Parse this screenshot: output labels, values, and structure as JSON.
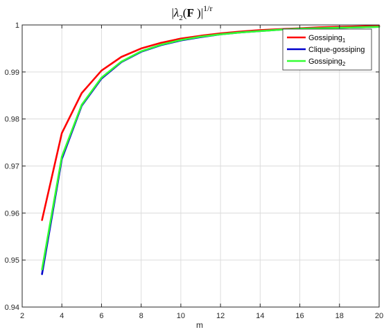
{
  "chart_data": {
    "type": "line",
    "title": {
      "bar_open": "|",
      "symbol": "λ",
      "subscript": "2",
      "paren_open": "(",
      "matrix": "F",
      "paren_close": " )",
      "bar_close": "|",
      "exponent": "1/r"
    },
    "xlabel": "m",
    "ylabel": "",
    "xlim": [
      2,
      20
    ],
    "ylim": [
      0.94,
      1
    ],
    "xticks": [
      "2",
      "4",
      "6",
      "8",
      "10",
      "12",
      "14",
      "16",
      "18",
      "20"
    ],
    "yticks": [
      "0.94",
      "0.95",
      "0.96",
      "0.97",
      "0.98",
      "0.99",
      "1"
    ],
    "grid": true,
    "legend_position": "top-right",
    "series": [
      {
        "name": "Gossiping",
        "name_subscript": "1",
        "color": "#ff0000",
        "x": [
          3,
          4,
          5,
          6,
          7,
          8,
          9,
          10,
          11,
          12,
          13,
          14,
          15,
          16,
          17,
          18,
          19,
          20
        ],
        "y": [
          0.9585,
          0.977,
          0.9855,
          0.9903,
          0.9932,
          0.995,
          0.9962,
          0.9971,
          0.9977,
          0.9982,
          0.9986,
          0.9989,
          0.9991,
          0.9993,
          0.9995,
          0.9996,
          0.9997,
          0.9998
        ]
      },
      {
        "name": "Clique-gossiping",
        "name_subscript": "",
        "color": "#0000cc",
        "x": [
          3,
          4,
          5,
          6,
          7,
          8,
          9,
          10,
          11,
          12,
          13,
          14,
          15,
          16,
          17,
          18,
          19,
          20
        ],
        "y": [
          0.947,
          0.9715,
          0.9828,
          0.9886,
          0.9921,
          0.9943,
          0.9957,
          0.9967,
          0.9974,
          0.998,
          0.9984,
          0.9987,
          0.999,
          0.9992,
          0.9993,
          0.9994,
          0.9995,
          0.9996
        ]
      },
      {
        "name": "Gossiping",
        "name_subscript": "2",
        "color": "#33ff33",
        "x": [
          3,
          4,
          5,
          6,
          7,
          8,
          9,
          10,
          11,
          12,
          13,
          14,
          15,
          16,
          17,
          18,
          19,
          20
        ],
        "y": [
          0.948,
          0.972,
          0.983,
          0.9888,
          0.9922,
          0.9944,
          0.9958,
          0.9968,
          0.9975,
          0.998,
          0.9984,
          0.9987,
          0.999,
          0.9992,
          0.9993,
          0.9994,
          0.9995,
          0.9996
        ]
      }
    ]
  }
}
